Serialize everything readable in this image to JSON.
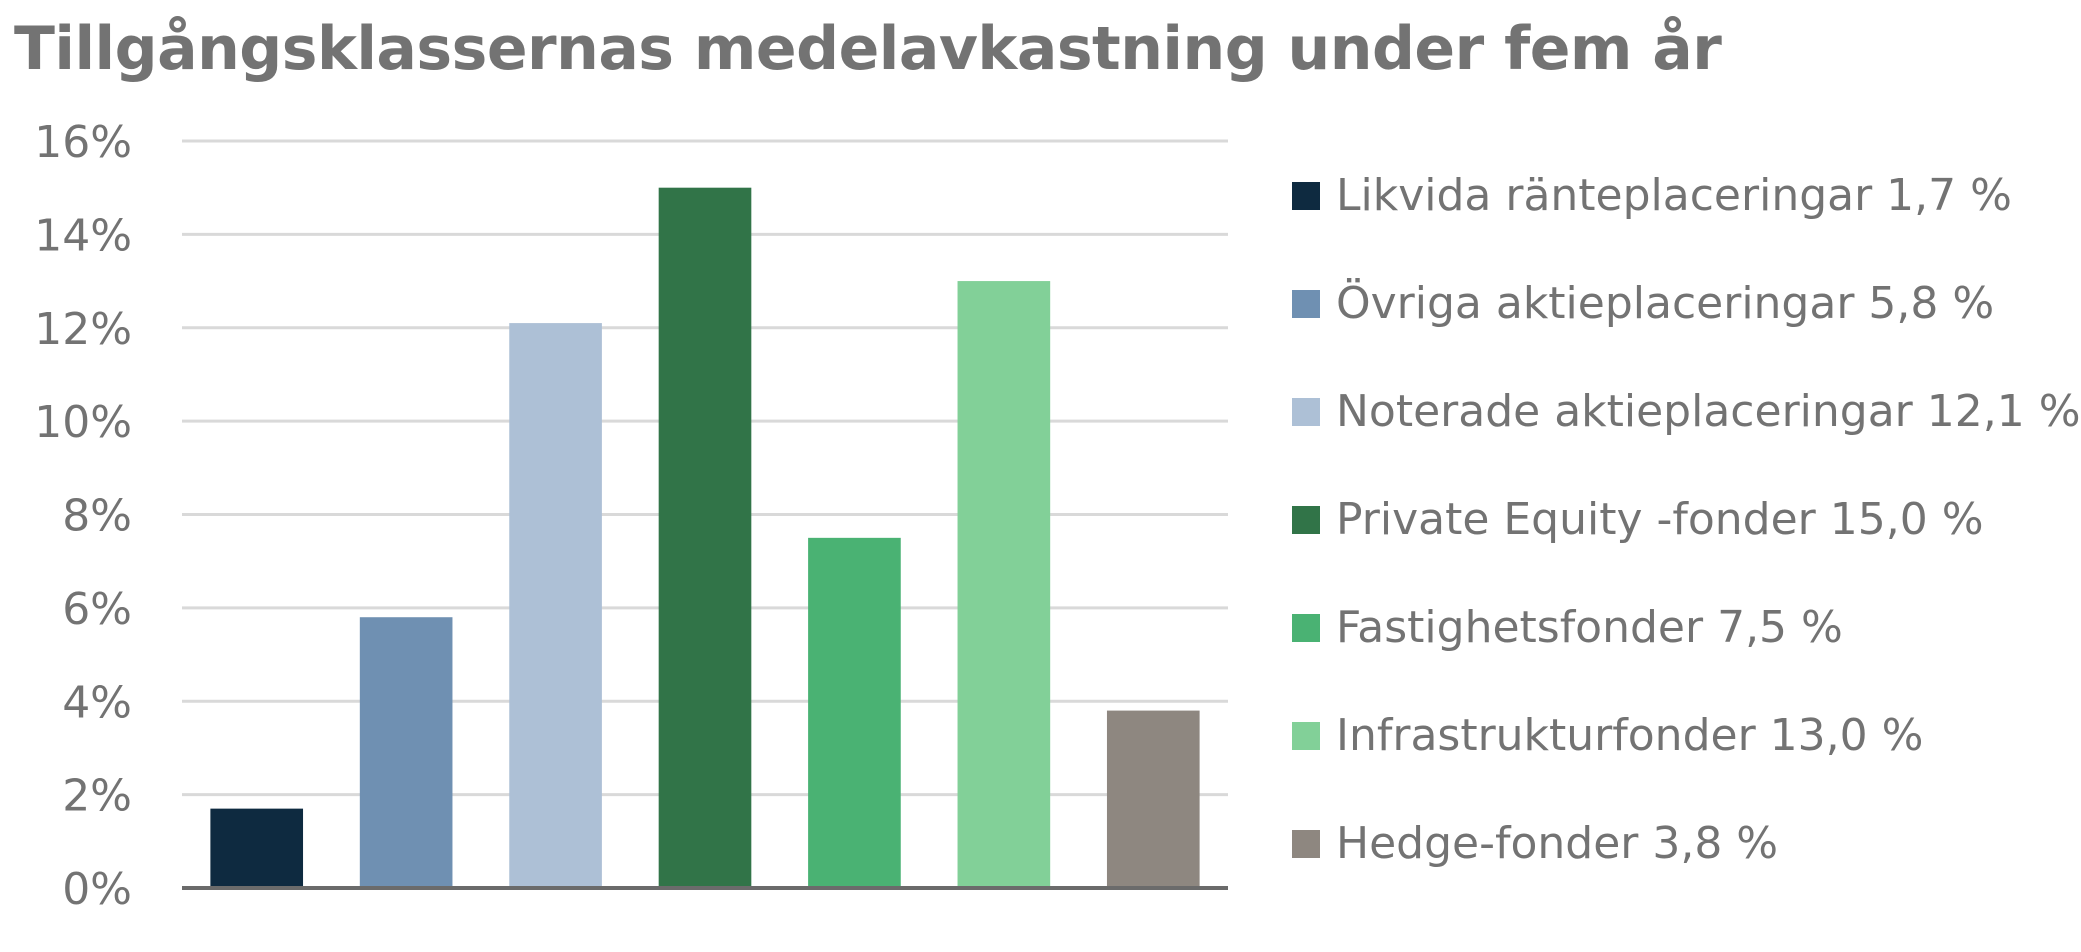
{
  "chart_data": {
    "type": "bar",
    "title": "Tillgångsklassernas medelavkastning under fem år",
    "categories": [
      "Likvida ränteplaceringar 1,7 %",
      "Övriga aktieplaceringar 5,8 %",
      "Noterade aktieplaceringar 12,1 %",
      "Private Equity -fonder 15,0 %",
      "Fastighetsfonder 7,5 %",
      "Infrastrukturfonder 13,0 %",
      "Hedge-fonder 3,8 %"
    ],
    "values": [
      1.7,
      5.8,
      12.1,
      15.0,
      7.5,
      13.0,
      3.8
    ],
    "colors": [
      "#0e2a40",
      "#6f90b2",
      "#adc0d6",
      "#317448",
      "#4ab273",
      "#82d098",
      "#8e8780"
    ],
    "ylim": [
      0,
      16
    ],
    "yticks": [
      "0%",
      "2%",
      "4%",
      "6%",
      "8%",
      "10%",
      "12%",
      "14%",
      "16%"
    ],
    "grid": true,
    "gridline_color": "#d9d9d9",
    "axis_color": "#6b6b6b",
    "legend_position": "right",
    "xlabel": "",
    "ylabel": ""
  }
}
